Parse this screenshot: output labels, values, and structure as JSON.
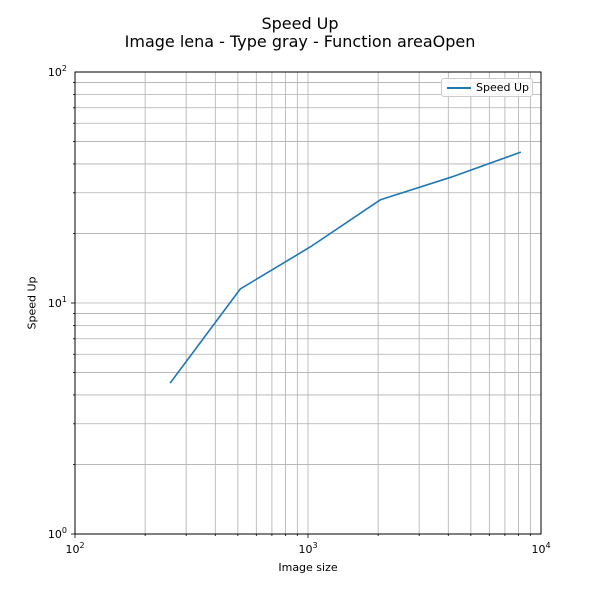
{
  "colors": {
    "series": "#1f77b4",
    "grid": "#b0b0b0",
    "axis": "#000000",
    "background": "#ffffff"
  },
  "chart_data": {
    "type": "line",
    "title": "Speed Up",
    "subtitle": "Image lena - Type gray - Function areaOpen",
    "xlabel": "Image size",
    "ylabel": "Speed Up",
    "xscale": "log",
    "yscale": "log",
    "xlim": [
      100,
      10000
    ],
    "ylim": [
      1,
      100
    ],
    "x_ticks": [
      {
        "value": 100,
        "base": "10",
        "exp": "2"
      },
      {
        "value": 1000,
        "base": "10",
        "exp": "3"
      },
      {
        "value": 10000,
        "base": "10",
        "exp": "4"
      }
    ],
    "y_ticks": [
      {
        "value": 1,
        "base": "10",
        "exp": "0"
      },
      {
        "value": 10,
        "base": "10",
        "exp": "1"
      },
      {
        "value": 100,
        "base": "10",
        "exp": "2"
      }
    ],
    "grid": true,
    "grid_minor": true,
    "legend_position": "upper right",
    "series": [
      {
        "name": "Speed Up",
        "x": [
          256,
          512,
          1024,
          2048,
          4096,
          8192
        ],
        "y": [
          4.5,
          11.5,
          17.5,
          28,
          35,
          45
        ]
      }
    ]
  }
}
